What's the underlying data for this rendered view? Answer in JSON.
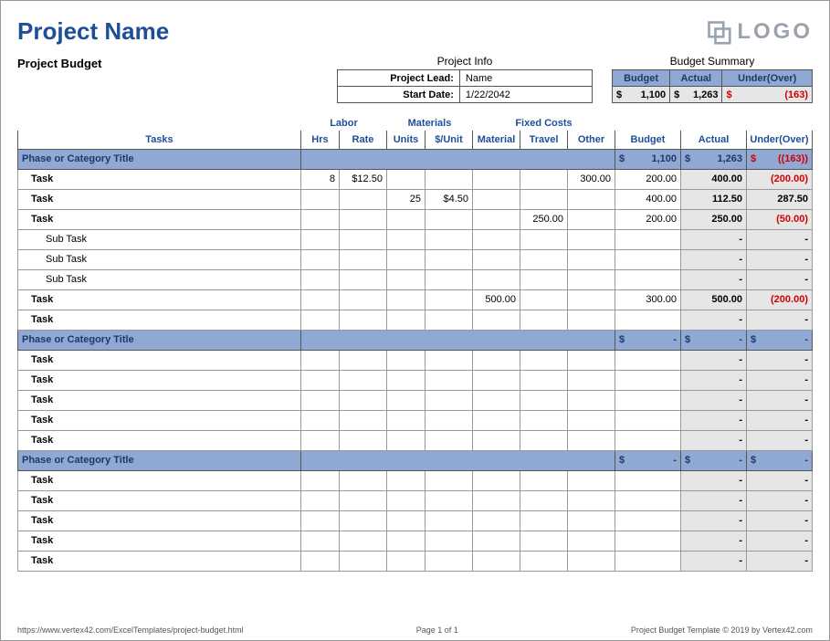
{
  "colors": {
    "accent": "#1f4e99",
    "header_bg": "#8fa8d4",
    "gray_bg": "#e6e6e6",
    "border_dark": "#555555",
    "border_light": "#999999",
    "negative": "#d40000",
    "logo_gray": "#9aa3ad"
  },
  "header": {
    "title": "Project Name",
    "logo_text": "LOGO",
    "budget_label": "Project Budget"
  },
  "project_info": {
    "title": "Project Info",
    "lead_label": "Project Lead:",
    "lead_value": "Name",
    "start_label": "Start Date:",
    "start_value": "1/22/2042"
  },
  "budget_summary": {
    "title": "Budget Summary",
    "cols": {
      "budget": "Budget",
      "actual": "Actual",
      "under": "Under(Over)"
    },
    "budget": "1,100",
    "actual": "1,263",
    "under_over": "(163)",
    "under_negative": true,
    "currency": "$"
  },
  "col_groups": {
    "labor": "Labor",
    "materials": "Materials",
    "fixed": "Fixed Costs"
  },
  "col_headers": {
    "tasks": "Tasks",
    "hrs": "Hrs",
    "rate": "Rate",
    "units": "Units",
    "per_unit": "$/Unit",
    "material": "Material",
    "travel": "Travel",
    "other": "Other",
    "budget": "Budget",
    "actual": "Actual",
    "under": "Under(Over)"
  },
  "rows": [
    {
      "type": "phase",
      "label": "Phase or Category Title",
      "budget": "1,100",
      "actual": "1,263",
      "under": "(163)",
      "neg": true,
      "currency": true
    },
    {
      "type": "task",
      "label": "Task",
      "hrs": "8",
      "rate": "$12.50",
      "other": "300.00",
      "budget": "200.00",
      "actual": "400.00",
      "under": "(200.00)",
      "neg": true
    },
    {
      "type": "task",
      "label": "Task",
      "units": "25",
      "per_unit": "$4.50",
      "budget": "400.00",
      "actual": "112.50",
      "under": "287.50"
    },
    {
      "type": "task",
      "label": "Task",
      "travel": "250.00",
      "budget": "200.00",
      "actual": "250.00",
      "under": "(50.00)",
      "neg": true
    },
    {
      "type": "subtask",
      "label": "Sub Task",
      "actual": "-",
      "under": "-"
    },
    {
      "type": "subtask",
      "label": "Sub Task",
      "actual": "-",
      "under": "-"
    },
    {
      "type": "subtask",
      "label": "Sub Task",
      "actual": "-",
      "under": "-"
    },
    {
      "type": "task",
      "label": "Task",
      "material": "500.00",
      "budget": "300.00",
      "actual": "500.00",
      "under": "(200.00)",
      "neg": true
    },
    {
      "type": "task",
      "label": "Task",
      "actual": "-",
      "under": "-"
    },
    {
      "type": "phase",
      "label": "Phase or Category Title",
      "budget": "-",
      "actual": "-",
      "under": "-",
      "currency": true
    },
    {
      "type": "task",
      "label": "Task",
      "actual": "-",
      "under": "-"
    },
    {
      "type": "task",
      "label": "Task",
      "actual": "-",
      "under": "-"
    },
    {
      "type": "task",
      "label": "Task",
      "actual": "-",
      "under": "-"
    },
    {
      "type": "task",
      "label": "Task",
      "actual": "-",
      "under": "-"
    },
    {
      "type": "task",
      "label": "Task",
      "actual": "-",
      "under": "-"
    },
    {
      "type": "phase",
      "label": "Phase or Category Title",
      "budget": "-",
      "actual": "-",
      "under": "-",
      "currency": true
    },
    {
      "type": "task",
      "label": "Task",
      "actual": "-",
      "under": "-"
    },
    {
      "type": "task",
      "label": "Task",
      "actual": "-",
      "under": "-"
    },
    {
      "type": "task",
      "label": "Task",
      "actual": "-",
      "under": "-"
    },
    {
      "type": "task",
      "label": "Task",
      "actual": "-",
      "under": "-"
    },
    {
      "type": "task",
      "label": "Task",
      "actual": "-",
      "under": "-"
    }
  ],
  "footer": {
    "left": "https://www.vertex42.com/ExcelTemplates/project-budget.html",
    "center": "Page 1 of 1",
    "right": "Project Budget Template © 2019 by Vertex42.com"
  }
}
